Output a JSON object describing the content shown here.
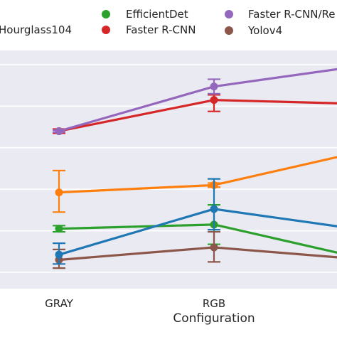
{
  "chart_data": {
    "type": "line",
    "title": "",
    "xlabel": "Configuration",
    "ylabel": "",
    "categories": [
      "GRAY",
      "RGB",
      ""
    ],
    "grid": true,
    "legend": "top",
    "ylim": [
      0,
      10
    ],
    "series": [
      {
        "name": "EfficientDet",
        "color": "#2ca02c",
        "values": [
          2.1,
          2.3,
          0.6
        ],
        "err": [
          [
            1.95,
            2.25
          ],
          [
            1.35,
            3.25
          ],
          null
        ]
      },
      {
        "name": "Faster R-CNN",
        "color": "#d62728",
        "values": [
          6.8,
          8.3,
          8.1
        ],
        "err": [
          [
            6.7,
            6.9
          ],
          [
            7.75,
            8.55
          ],
          null
        ]
      },
      {
        "name": "Faster R-CNN/Re",
        "color": "#9467bd",
        "values": [
          6.8,
          8.95,
          10.0
        ],
        "err": [
          [
            6.75,
            6.85
          ],
          [
            8.6,
            9.3
          ],
          null
        ]
      },
      {
        "name": "Yolov4",
        "color": "#8c564b",
        "values": [
          0.6,
          1.2,
          0.6
        ],
        "err": [
          [
            0.2,
            1.1
          ],
          [
            0.5,
            1.95
          ],
          null
        ]
      },
      {
        "name": "Hourglass104",
        "color": "#ff7f0e",
        "values": [
          3.85,
          4.2,
          5.9
        ],
        "err": [
          [
            2.9,
            4.9
          ],
          [
            4.1,
            4.3
          ],
          null
        ]
      },
      {
        "name": "",
        "color": "#1f77b4",
        "values": [
          0.85,
          3.05,
          2.0
        ],
        "err": [
          [
            0.4,
            1.4
          ],
          [
            2.05,
            4.5
          ],
          null
        ]
      }
    ]
  }
}
